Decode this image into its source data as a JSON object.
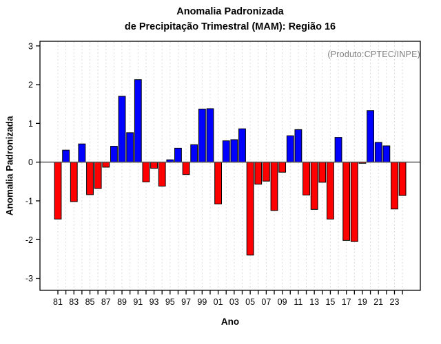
{
  "title": {
    "line1": "Anomalia Padronizada",
    "line2": "de Precipitação Trimestral (MAM): Região 16"
  },
  "axis": {
    "ylabel": "Anomalia Padronizada",
    "xlabel": "Ano"
  },
  "annotation": "(Produto:CPTEC/INPE)",
  "chart_data": {
    "type": "bar",
    "title": "Anomalia Padronizada de Precipitação Trimestral (MAM): Região 16",
    "xlabel": "Ano",
    "ylabel": "Anomalia Padronizada",
    "x": [
      1981,
      1982,
      1983,
      1984,
      1985,
      1986,
      1987,
      1988,
      1989,
      1990,
      1991,
      1992,
      1993,
      1994,
      1995,
      1996,
      1997,
      1998,
      1999,
      2000,
      2001,
      2002,
      2003,
      2004,
      2005,
      2006,
      2007,
      2008,
      2009,
      2010,
      2011,
      2012,
      2013,
      2014,
      2015,
      2016,
      2017,
      2018,
      2019,
      2020,
      2021,
      2022,
      2023,
      2024
    ],
    "values": [
      -1.47,
      0.31,
      -1.02,
      0.47,
      -0.84,
      -0.68,
      -0.13,
      0.41,
      1.7,
      0.76,
      2.13,
      -0.51,
      -0.16,
      -0.62,
      0.06,
      0.36,
      -0.32,
      0.45,
      1.37,
      1.38,
      -1.08,
      0.55,
      0.58,
      0.86,
      -2.4,
      -0.57,
      -0.49,
      -1.25,
      -0.26,
      0.68,
      0.84,
      -0.85,
      -1.22,
      -0.52,
      -1.47,
      0.64,
      -2.02,
      -2.05,
      -0.03,
      1.33,
      0.51,
      0.42,
      -1.21,
      -0.86
    ],
    "x_tick_labels": [
      "81",
      "83",
      "85",
      "87",
      "89",
      "91",
      "93",
      "95",
      "97",
      "99",
      "01",
      "03",
      "05",
      "07",
      "09",
      "11",
      "13",
      "15",
      "17",
      "19",
      "21",
      "23"
    ],
    "y_ticks": [
      -3,
      -2,
      -1,
      0,
      1,
      2,
      3
    ],
    "ylim": [
      -3,
      3
    ],
    "grid": "vertical dashed line per year",
    "grid_color": "#dcdcdc",
    "positive_color": "#0000ff",
    "negative_color": "#ff0000",
    "bar_border_color": "#000000",
    "zero_line_color": "#555555",
    "frame_color": "#000000",
    "legend": "none",
    "annotation": "(Produto:CPTEC/INPE)",
    "annotation_color": "#7f7f7f"
  }
}
